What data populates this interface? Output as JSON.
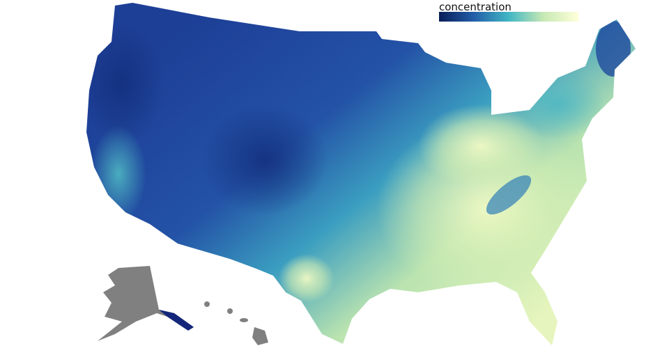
{
  "legend": {
    "title": "concentration"
  }
}
